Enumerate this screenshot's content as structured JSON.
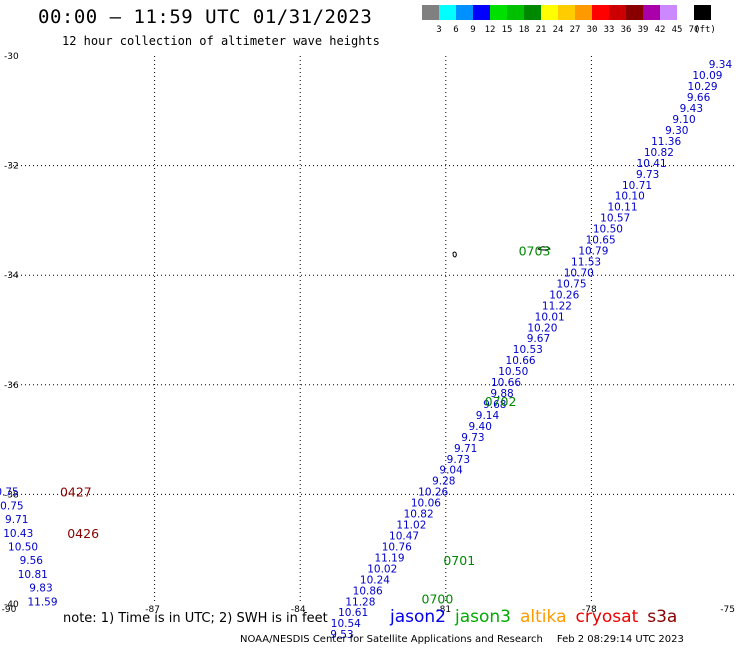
{
  "header": {
    "title": "00:00 – 11:59 UTC 01/31/2023",
    "subtitle": "12 hour collection of altimeter wave heights"
  },
  "legend": {
    "unit": "(ft)",
    "swatches": [
      {
        "color": "#808080",
        "label": "3"
      },
      {
        "color": "#00ffff",
        "label": "6"
      },
      {
        "color": "#0090ff",
        "label": "9"
      },
      {
        "color": "#0000ff",
        "label": "12"
      },
      {
        "color": "#00e000",
        "label": "15"
      },
      {
        "color": "#00c000",
        "label": "18"
      },
      {
        "color": "#008800",
        "label": "21"
      },
      {
        "color": "#ffff00",
        "label": "24"
      },
      {
        "color": "#ffcc00",
        "label": "27"
      },
      {
        "color": "#ff9900",
        "label": "30"
      },
      {
        "color": "#ff0000",
        "label": "33"
      },
      {
        "color": "#cc0000",
        "label": "36"
      },
      {
        "color": "#880000",
        "label": "39"
      },
      {
        "color": "#aa00aa",
        "label": "42"
      },
      {
        "color": "#cc88ff",
        "label": "45"
      },
      {
        "color": "#ffffff",
        "label": "70"
      },
      {
        "color": "#000000",
        "label": ""
      }
    ]
  },
  "map": {
    "lon_range": [
      -90,
      -75
    ],
    "lat_range": [
      -40,
      -30
    ],
    "lon_ticks": [
      "-90",
      "-87",
      "-84",
      "-81",
      "-78",
      "-75"
    ],
    "lat_ticks": [
      "-30",
      "-32",
      "-34",
      "-36",
      "-38",
      "-40"
    ],
    "colors": {
      "jason3": "#0000cc",
      "cryosat": "#880000",
      "time_label": "#008800"
    },
    "track_jason3": [
      {
        "lon": -75.1,
        "lat": -30.15,
        "v": "9.34"
      },
      {
        "lon": -75.3,
        "lat": -30.35,
        "v": "10.09"
      },
      {
        "lon": -75.4,
        "lat": -30.55,
        "v": "10.29"
      },
      {
        "lon": -75.55,
        "lat": -30.75,
        "v": "9.66"
      },
      {
        "lon": -75.7,
        "lat": -30.95,
        "v": "9.43"
      },
      {
        "lon": -75.85,
        "lat": -31.15,
        "v": "9.10"
      },
      {
        "lon": -76.0,
        "lat": -31.35,
        "v": "9.30"
      },
      {
        "lon": -76.15,
        "lat": -31.55,
        "v": "11.36"
      },
      {
        "lon": -76.3,
        "lat": -31.75,
        "v": "10.82"
      },
      {
        "lon": -76.45,
        "lat": -31.95,
        "v": "10.41"
      },
      {
        "lon": -76.6,
        "lat": -32.15,
        "v": "9.73"
      },
      {
        "lon": -76.75,
        "lat": -32.35,
        "v": "10.71"
      },
      {
        "lon": -76.9,
        "lat": -32.55,
        "v": "10.10"
      },
      {
        "lon": -77.05,
        "lat": -32.75,
        "v": "10.11"
      },
      {
        "lon": -77.2,
        "lat": -32.95,
        "v": "10.57"
      },
      {
        "lon": -77.35,
        "lat": -33.15,
        "v": "10.50"
      },
      {
        "lon": -77.5,
        "lat": -33.35,
        "v": "10.65"
      },
      {
        "lon": -77.65,
        "lat": -33.55,
        "v": "10.79"
      },
      {
        "lon": -77.8,
        "lat": -33.75,
        "v": "11.53"
      },
      {
        "lon": -77.95,
        "lat": -33.95,
        "v": "10.70"
      },
      {
        "lon": -78.1,
        "lat": -34.15,
        "v": "10.75"
      },
      {
        "lon": -78.25,
        "lat": -34.35,
        "v": "10.26"
      },
      {
        "lon": -78.4,
        "lat": -34.55,
        "v": "11.22"
      },
      {
        "lon": -78.55,
        "lat": -34.75,
        "v": "10.01"
      },
      {
        "lon": -78.7,
        "lat": -34.95,
        "v": "10.20"
      },
      {
        "lon": -78.85,
        "lat": -35.15,
        "v": "9.67"
      },
      {
        "lon": -79.0,
        "lat": -35.35,
        "v": "10.53"
      },
      {
        "lon": -79.15,
        "lat": -35.55,
        "v": "10.66"
      },
      {
        "lon": -79.3,
        "lat": -35.75,
        "v": "10.50"
      },
      {
        "lon": -79.45,
        "lat": -35.95,
        "v": "10.66"
      },
      {
        "lon": -79.6,
        "lat": -36.15,
        "v": "9.88"
      },
      {
        "lon": -79.75,
        "lat": -36.35,
        "v": "9.68"
      },
      {
        "lon": -79.9,
        "lat": -36.55,
        "v": "9.14"
      },
      {
        "lon": -80.05,
        "lat": -36.75,
        "v": "9.40"
      },
      {
        "lon": -80.2,
        "lat": -36.95,
        "v": "9.73"
      },
      {
        "lon": -80.35,
        "lat": -37.15,
        "v": "9.71"
      },
      {
        "lon": -80.5,
        "lat": -37.35,
        "v": "9.73"
      },
      {
        "lon": -80.65,
        "lat": -37.55,
        "v": "9.04"
      },
      {
        "lon": -80.8,
        "lat": -37.75,
        "v": "9.28"
      },
      {
        "lon": -80.95,
        "lat": -37.95,
        "v": "10.26"
      },
      {
        "lon": -81.1,
        "lat": -38.15,
        "v": "10.06"
      },
      {
        "lon": -81.25,
        "lat": -38.35,
        "v": "10.82"
      },
      {
        "lon": -81.4,
        "lat": -38.55,
        "v": "11.02"
      },
      {
        "lon": -81.55,
        "lat": -38.75,
        "v": "10.47"
      },
      {
        "lon": -81.7,
        "lat": -38.95,
        "v": "10.76"
      },
      {
        "lon": -81.85,
        "lat": -39.15,
        "v": "11.19"
      },
      {
        "lon": -82.0,
        "lat": -39.35,
        "v": "10.02"
      },
      {
        "lon": -82.15,
        "lat": -39.55,
        "v": "10.24"
      },
      {
        "lon": -82.3,
        "lat": -39.75,
        "v": "10.86"
      },
      {
        "lon": -82.45,
        "lat": -39.95,
        "v": "11.28"
      },
      {
        "lon": -82.6,
        "lat": -40.15,
        "v": "10.61"
      },
      {
        "lon": -82.75,
        "lat": -40.35,
        "v": "10.54"
      },
      {
        "lon": -82.9,
        "lat": -40.55,
        "v": "9.53"
      }
    ],
    "time_labels": [
      {
        "lon": -79.5,
        "lat": -33.55,
        "t": "0703",
        "sat": "jason3"
      },
      {
        "lon": -80.2,
        "lat": -36.3,
        "t": "0702",
        "sat": "jason3"
      },
      {
        "lon": -81.05,
        "lat": -39.2,
        "t": "0701",
        "sat": "jason3"
      },
      {
        "lon": -81.5,
        "lat": -39.9,
        "t": "0700",
        "sat": "jason3"
      },
      {
        "lon": -88.95,
        "lat": -37.95,
        "t": "0427",
        "sat": "cryosat"
      },
      {
        "lon": -88.8,
        "lat": -38.7,
        "t": "0426",
        "sat": "cryosat"
      }
    ],
    "track_cryosat": [
      {
        "lon": -89.8,
        "lat": -37.95,
        "v": "10.75"
      },
      {
        "lon": -89.7,
        "lat": -38.2,
        "v": "10.75"
      },
      {
        "lon": -89.6,
        "lat": -38.45,
        "v": "9.71"
      },
      {
        "lon": -89.5,
        "lat": -38.7,
        "v": "10.43"
      },
      {
        "lon": -89.4,
        "lat": -38.95,
        "v": "10.50"
      },
      {
        "lon": -89.3,
        "lat": -39.2,
        "v": "9.56"
      },
      {
        "lon": -89.2,
        "lat": -39.45,
        "v": "10.81"
      },
      {
        "lon": -89.1,
        "lat": -39.7,
        "v": "9.83"
      },
      {
        "lon": -89.0,
        "lat": -39.95,
        "v": "11.59"
      }
    ]
  },
  "footer": {
    "note": "note: 1) Time is in UTC; 2) SWH is in feet",
    "satellites": [
      {
        "name": "jason2",
        "color": "#0000ee"
      },
      {
        "name": "jason3",
        "color": "#00aa00"
      },
      {
        "name": "altika",
        "color": "#ff9900"
      },
      {
        "name": "cryosat",
        "color": "#ee0000"
      },
      {
        "name": "s3a",
        "color": "#880000"
      }
    ],
    "credit": "NOAA/NESDIS Center for Satellite Applications and Research",
    "timestamp": "Feb  2 08:29:14 UTC 2023"
  }
}
